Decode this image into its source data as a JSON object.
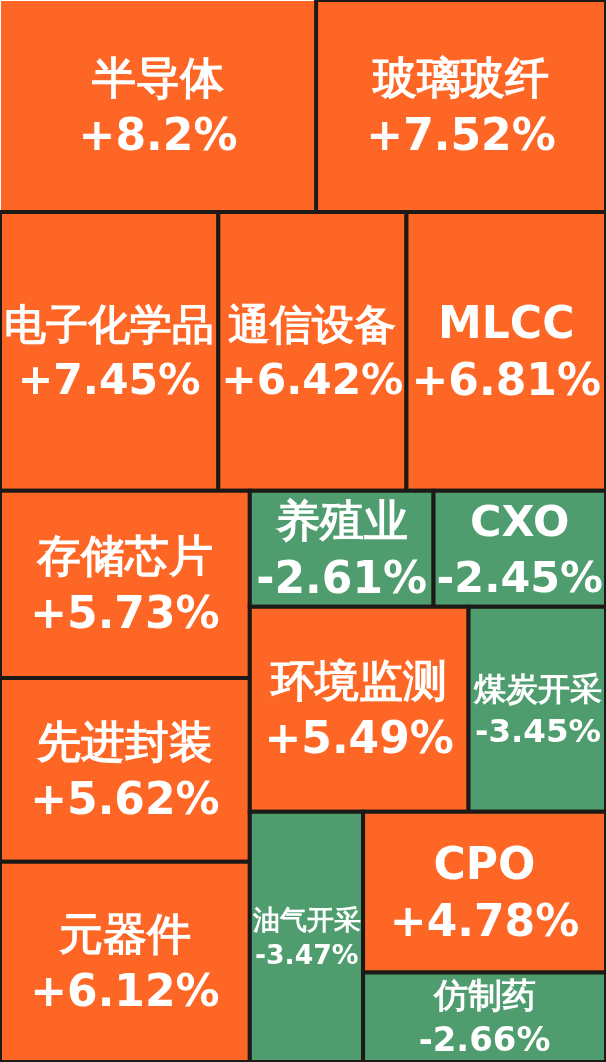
{
  "chart_data": {
    "type": "other",
    "categories": [
      "半导体",
      "玻璃玻纤",
      "电子化学品",
      "通信设备",
      "MLCC",
      "存储芯片",
      "先进封装",
      "元器件",
      "养殖业",
      "CXO",
      "环境监测",
      "煤炭开采",
      "油气开采",
      "CPO",
      "仿制药"
    ],
    "values": [
      8.2,
      7.52,
      7.45,
      6.42,
      6.81,
      5.73,
      5.62,
      6.12,
      -2.61,
      -2.45,
      5.49,
      -3.45,
      -3.47,
      4.78,
      -2.66
    ],
    "value_labels": [
      "+8.2%",
      "+7.52%",
      "+7.45%",
      "+6.42%",
      "+6.81%",
      "+5.73%",
      "+5.62%",
      "+6.12%",
      "-2.61%",
      "-2.45%",
      "+5.49%",
      "-3.45%",
      "-3.47%",
      "+4.78%",
      "-2.66%"
    ],
    "colors": [
      "#fe6625",
      "#fe6625",
      "#fe6625",
      "#fe6625",
      "#fe6625",
      "#fe6625",
      "#fe6625",
      "#fe6625",
      "#4f9d6e",
      "#4f9d6e",
      "#fe6625",
      "#4f9d6e",
      "#4f9d6e",
      "#fe6625",
      "#4f9d6e"
    ]
  }
}
